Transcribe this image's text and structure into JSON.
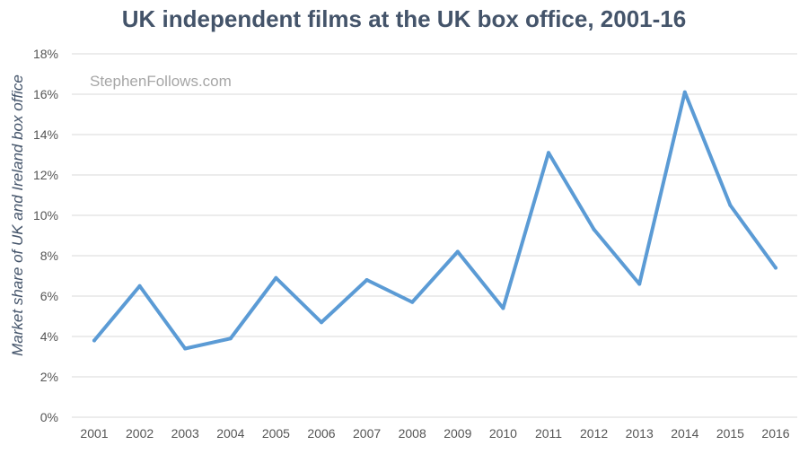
{
  "chart_data": {
    "type": "line",
    "title": "UK independent films at the UK box office, 2001-16",
    "xlabel": "",
    "ylabel": "Market share of UK and Ireland box office",
    "watermark": "StephenFollows.com",
    "categories": [
      "2001",
      "2002",
      "2003",
      "2004",
      "2005",
      "2006",
      "2007",
      "2008",
      "2009",
      "2010",
      "2011",
      "2012",
      "2013",
      "2014",
      "2015",
      "2016"
    ],
    "series": [
      {
        "values": [
          3.8,
          6.5,
          3.4,
          3.9,
          6.9,
          4.7,
          6.8,
          5.7,
          8.2,
          5.4,
          13.1,
          9.3,
          6.6,
          16.1,
          10.5,
          7.4
        ]
      }
    ],
    "ylim": [
      0,
      18
    ],
    "yticks": [
      0,
      2,
      4,
      6,
      8,
      10,
      12,
      14,
      16,
      18
    ],
    "ytick_labels": [
      "0%",
      "2%",
      "4%",
      "6%",
      "8%",
      "10%",
      "12%",
      "14%",
      "16%",
      "18%"
    ],
    "grid": true,
    "line_color": "#5b9bd5",
    "grid_color": "#d9d9d9"
  }
}
